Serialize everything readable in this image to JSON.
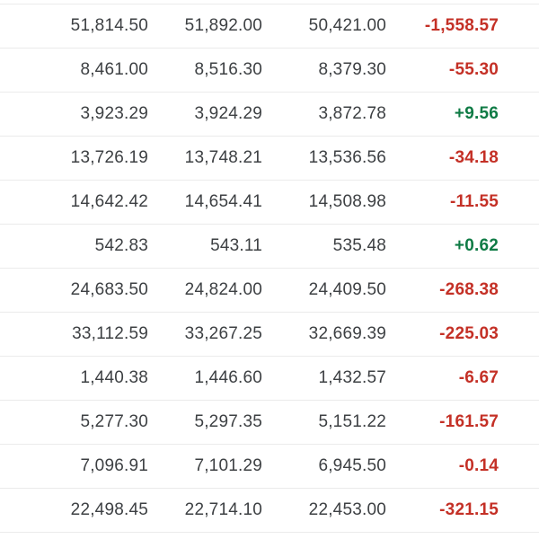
{
  "colors": {
    "background": "#ffffff",
    "text": "#3d4043",
    "divider": "#ebebeb",
    "negative": "#c43026",
    "positive": "#0f7b45"
  },
  "table": {
    "rows": [
      {
        "values": [
          "51,814.50",
          "51,892.00",
          "50,421.00"
        ],
        "change": "-1,558.57",
        "direction": "negative"
      },
      {
        "values": [
          "8,461.00",
          "8,516.30",
          "8,379.30"
        ],
        "change": "-55.30",
        "direction": "negative"
      },
      {
        "values": [
          "3,923.29",
          "3,924.29",
          "3,872.78"
        ],
        "change": "+9.56",
        "direction": "positive"
      },
      {
        "values": [
          "13,726.19",
          "13,748.21",
          "13,536.56"
        ],
        "change": "-34.18",
        "direction": "negative"
      },
      {
        "values": [
          "14,642.42",
          "14,654.41",
          "14,508.98"
        ],
        "change": "-11.55",
        "direction": "negative"
      },
      {
        "values": [
          "542.83",
          "543.11",
          "535.48"
        ],
        "change": "+0.62",
        "direction": "positive"
      },
      {
        "values": [
          "24,683.50",
          "24,824.00",
          "24,409.50"
        ],
        "change": "-268.38",
        "direction": "negative"
      },
      {
        "values": [
          "33,112.59",
          "33,267.25",
          "32,669.39"
        ],
        "change": "-225.03",
        "direction": "negative"
      },
      {
        "values": [
          "1,440.38",
          "1,446.60",
          "1,432.57"
        ],
        "change": "-6.67",
        "direction": "negative"
      },
      {
        "values": [
          "5,277.30",
          "5,297.35",
          "5,151.22"
        ],
        "change": "-161.57",
        "direction": "negative"
      },
      {
        "values": [
          "7,096.91",
          "7,101.29",
          "6,945.50"
        ],
        "change": "-0.14",
        "direction": "negative"
      },
      {
        "values": [
          "22,498.45",
          "22,714.10",
          "22,453.00"
        ],
        "change": "-321.15",
        "direction": "negative"
      }
    ]
  }
}
